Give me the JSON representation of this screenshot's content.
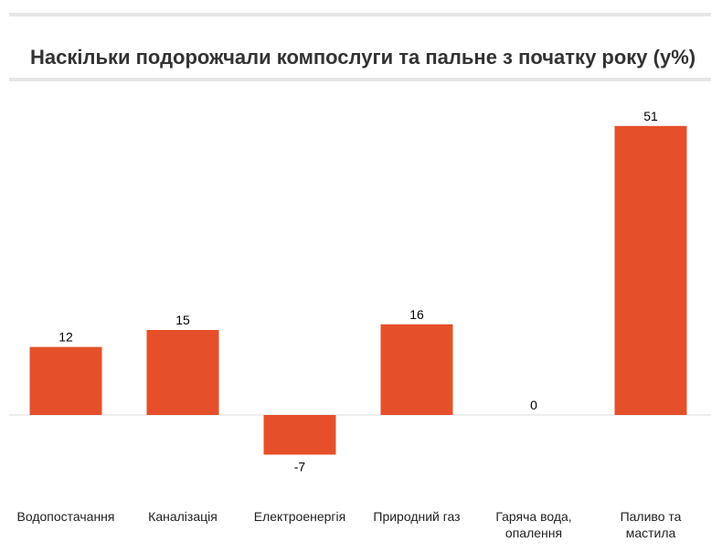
{
  "chart_data": {
    "type": "bar",
    "title": "Наскільки подорожчали компослуги та пальне з початку року (у%)",
    "categories": [
      [
        "Водопостачання"
      ],
      [
        "Каналізація"
      ],
      [
        "Електроенергія"
      ],
      [
        "Природний газ"
      ],
      [
        "Гаряча вода,",
        "опалення"
      ],
      [
        "Паливо та",
        "мастила"
      ]
    ],
    "values": [
      12,
      15,
      -7,
      16,
      0,
      51
    ],
    "value_labels": [
      "12",
      "15",
      "-7",
      "16",
      "0",
      "51"
    ],
    "ylim": [
      -7,
      51
    ],
    "grid": false,
    "bar_color": "#e5502a",
    "baseline_color": "#dddddd"
  }
}
